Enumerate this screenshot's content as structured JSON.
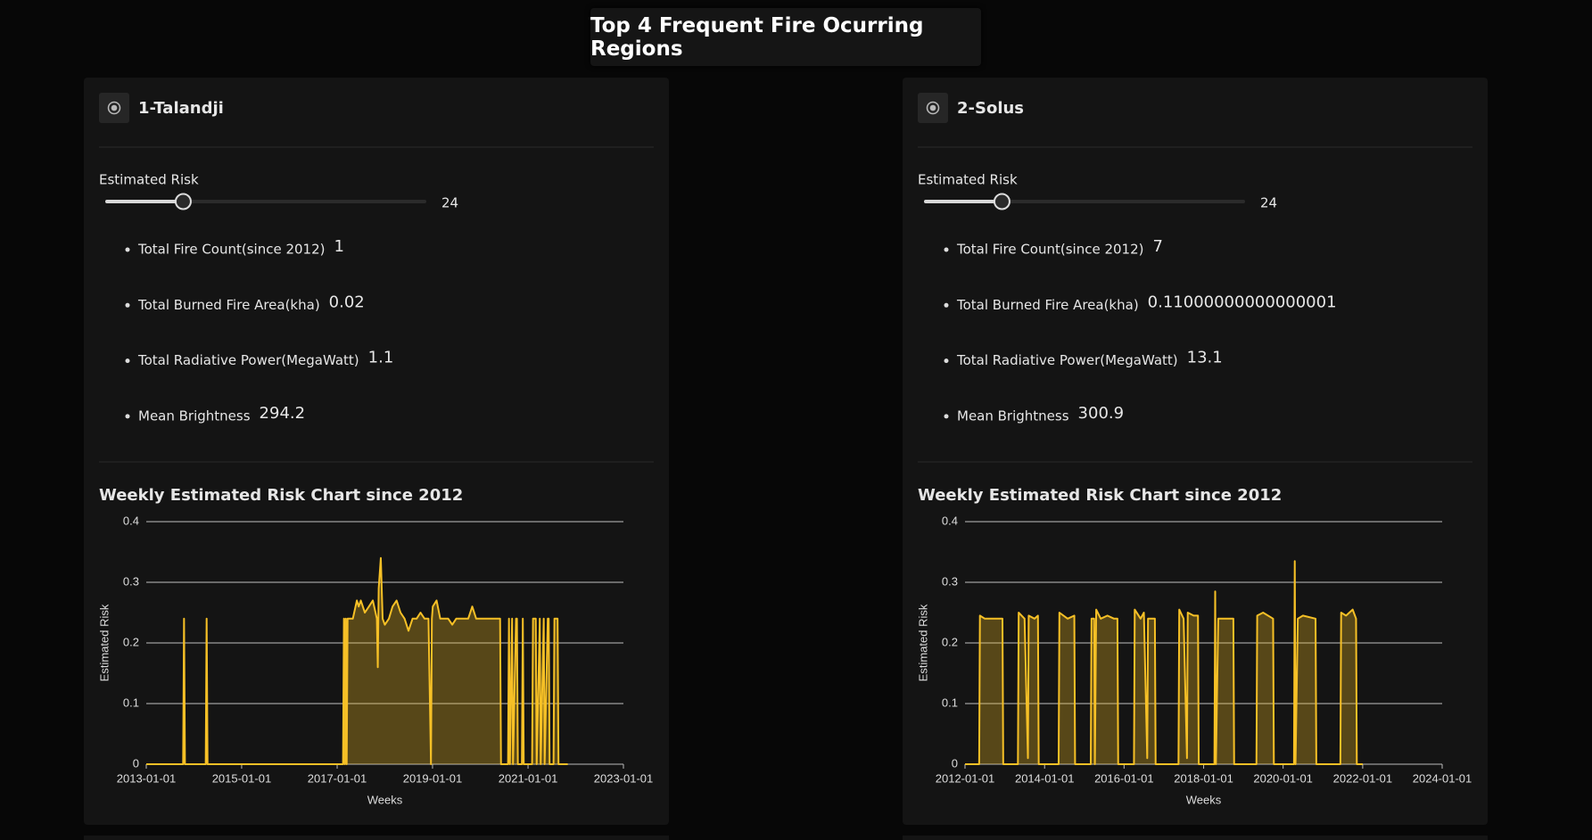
{
  "header": {
    "title": "Top 4 Frequent Fire Ocurring Regions"
  },
  "panels": [
    {
      "name": "1-Talandji",
      "slider": {
        "label": "Estimated Risk",
        "value": 24
      },
      "stats": [
        {
          "label": "Total Fire Count(since 2012)",
          "value": 1
        },
        {
          "label": "Total Burned Fire Area(kha)",
          "value": 0.02
        },
        {
          "label": "Total Radiative Power(MegaWatt)",
          "value": 1.1
        },
        {
          "label": "Mean Brightness",
          "value": 294.2
        }
      ]
    },
    {
      "name": "2-Solus",
      "slider": {
        "label": "Estimated Risk",
        "value": 24
      },
      "stats": [
        {
          "label": "Total Fire Count(since 2012)",
          "value": 7
        },
        {
          "label": "Total Burned Fire Area(kha)",
          "value": 0.11000000000000001
        },
        {
          "label": "Total Radiative Power(MegaWatt)",
          "value": 13.1
        },
        {
          "label": "Mean Brightness",
          "value": 300.9
        }
      ]
    }
  ],
  "chart_data": [
    {
      "type": "area",
      "title": "Weekly Estimated Risk Chart since 2012",
      "x_label": "Weeks",
      "y_label": "Estimated Risk",
      "color": "#f6c026",
      "grid": true,
      "xlim": [
        "2013-01-01",
        "2023-01-01"
      ],
      "xticks": [
        "2013-01-01",
        "2015-01-01",
        "2017-01-01",
        "2019-01-01",
        "2021-01-01",
        "2023-01-01"
      ],
      "ylim": [
        0,
        0.4
      ],
      "yticks": [
        0,
        0.1,
        0.2,
        0.3,
        0.4
      ],
      "x": [
        "2013-01-01",
        "2013-10-10",
        "2013-10-17",
        "2013-10-24",
        "2014-04-01",
        "2014-04-08",
        "2014-04-15",
        "2017-02-15",
        "2017-02-22",
        "2017-03-01",
        "2017-03-08",
        "2017-03-15",
        "2017-03-22",
        "2017-04-15",
        "2017-05-01",
        "2017-06-01",
        "2017-06-15",
        "2017-07-01",
        "2017-08-01",
        "2017-09-01",
        "2017-10-01",
        "2017-11-01",
        "2017-11-08",
        "2017-11-15",
        "2017-12-01",
        "2017-12-08",
        "2017-12-15",
        "2018-01-01",
        "2018-02-01",
        "2018-03-01",
        "2018-04-01",
        "2018-05-01",
        "2018-06-01",
        "2018-07-01",
        "2018-08-01",
        "2018-09-01",
        "2018-10-01",
        "2018-11-01",
        "2018-12-01",
        "2018-12-20",
        "2018-12-27",
        "2019-01-03",
        "2019-02-01",
        "2019-03-01",
        "2019-04-01",
        "2019-05-01",
        "2019-06-01",
        "2019-07-01",
        "2019-08-01",
        "2019-09-01",
        "2019-10-01",
        "2019-11-01",
        "2019-12-01",
        "2020-02-01",
        "2020-04-01",
        "2020-06-01",
        "2020-06-08",
        "2020-08-01",
        "2020-08-08",
        "2020-08-15",
        "2020-09-01",
        "2020-09-08",
        "2020-10-01",
        "2020-10-08",
        "2020-10-15",
        "2020-11-15",
        "2020-11-22",
        "2020-11-29",
        "2021-02-01",
        "2021-02-08",
        "2021-03-01",
        "2021-03-08",
        "2021-04-01",
        "2021-04-08",
        "2021-05-01",
        "2021-05-08",
        "2021-06-01",
        "2021-06-08",
        "2021-06-15",
        "2021-07-15",
        "2021-07-22",
        "2021-08-15",
        "2021-08-22",
        "2021-11-01"
      ],
      "values": [
        0,
        0,
        0.24,
        0,
        0,
        0.24,
        0,
        0,
        0.24,
        0,
        0.24,
        0,
        0.24,
        0.24,
        0.24,
        0.27,
        0.26,
        0.27,
        0.25,
        0.26,
        0.27,
        0.24,
        0.16,
        0.29,
        0.34,
        0.29,
        0.24,
        0.23,
        0.24,
        0.26,
        0.27,
        0.25,
        0.24,
        0.22,
        0.24,
        0.24,
        0.25,
        0.24,
        0.24,
        0,
        0.24,
        0.26,
        0.27,
        0.24,
        0.24,
        0.24,
        0.23,
        0.24,
        0.24,
        0.24,
        0.24,
        0.26,
        0.24,
        0.24,
        0.24,
        0.24,
        0,
        0,
        0.24,
        0,
        0.24,
        0,
        0.24,
        0.24,
        0,
        0,
        0.24,
        0,
        0,
        0.24,
        0.24,
        0,
        0.24,
        0,
        0.24,
        0,
        0.24,
        0.24,
        0,
        0,
        0.24,
        0.24,
        0,
        0
      ]
    },
    {
      "type": "area",
      "title": "Weekly Estimated Risk Chart since 2012",
      "x_label": "Weeks",
      "y_label": "Estimated Risk",
      "color": "#f6c026",
      "grid": true,
      "xlim": [
        "2012-01-01",
        "2024-01-01"
      ],
      "xticks": [
        "2012-01-01",
        "2014-01-01",
        "2016-01-01",
        "2018-01-01",
        "2020-01-01",
        "2022-01-01",
        "2024-01-01"
      ],
      "ylim": [
        0,
        0.4
      ],
      "yticks": [
        0,
        0.1,
        0.2,
        0.3,
        0.4
      ],
      "x": [
        "2012-01-01",
        "2012-05-10",
        "2012-05-17",
        "2012-07-01",
        "2012-09-01",
        "2012-12-10",
        "2012-12-17",
        "2013-05-01",
        "2013-05-08",
        "2013-07-01",
        "2013-08-01",
        "2013-08-08",
        "2013-10-01",
        "2013-11-01",
        "2013-11-08",
        "2014-05-10",
        "2014-05-17",
        "2014-08-01",
        "2014-10-01",
        "2014-10-08",
        "2015-03-01",
        "2015-03-08",
        "2015-04-01",
        "2015-04-08",
        "2015-04-20",
        "2015-06-01",
        "2015-08-01",
        "2015-10-01",
        "2015-11-01",
        "2015-11-08",
        "2016-04-01",
        "2016-04-08",
        "2016-06-01",
        "2016-07-01",
        "2016-08-01",
        "2016-08-08",
        "2016-10-10",
        "2016-10-17",
        "2017-05-15",
        "2017-05-22",
        "2017-07-01",
        "2017-08-01",
        "2017-08-08",
        "2017-10-01",
        "2017-11-10",
        "2017-11-17",
        "2018-04-10",
        "2018-04-17",
        "2018-04-24",
        "2018-05-15",
        "2018-08-01",
        "2018-10-01",
        "2018-10-08",
        "2019-05-01",
        "2019-05-08",
        "2019-07-01",
        "2019-10-01",
        "2019-10-08",
        "2020-04-10",
        "2020-04-17",
        "2020-04-24",
        "2020-05-15",
        "2020-07-01",
        "2020-10-25",
        "2020-11-01",
        "2021-06-10",
        "2021-06-17",
        "2021-08-01",
        "2021-10-01",
        "2021-11-01",
        "2021-11-08",
        "2022-01-01"
      ],
      "values": [
        0,
        0,
        0.245,
        0.24,
        0.24,
        0.24,
        0,
        0,
        0.25,
        0.24,
        0.01,
        0.245,
        0.24,
        0.245,
        0,
        0,
        0.25,
        0.24,
        0.245,
        0,
        0,
        0.24,
        0.24,
        0,
        0.255,
        0.24,
        0.245,
        0.24,
        0.24,
        0,
        0,
        0.255,
        0.24,
        0.25,
        0.01,
        0.24,
        0.24,
        0,
        0,
        0.255,
        0.24,
        0.01,
        0.25,
        0.245,
        0.245,
        0,
        0,
        0.285,
        0,
        0.24,
        0.24,
        0.24,
        0,
        0,
        0.245,
        0.25,
        0.24,
        0,
        0,
        0.335,
        0,
        0.24,
        0.245,
        0.24,
        0,
        0,
        0.25,
        0.245,
        0.255,
        0.24,
        0,
        0
      ]
    }
  ]
}
